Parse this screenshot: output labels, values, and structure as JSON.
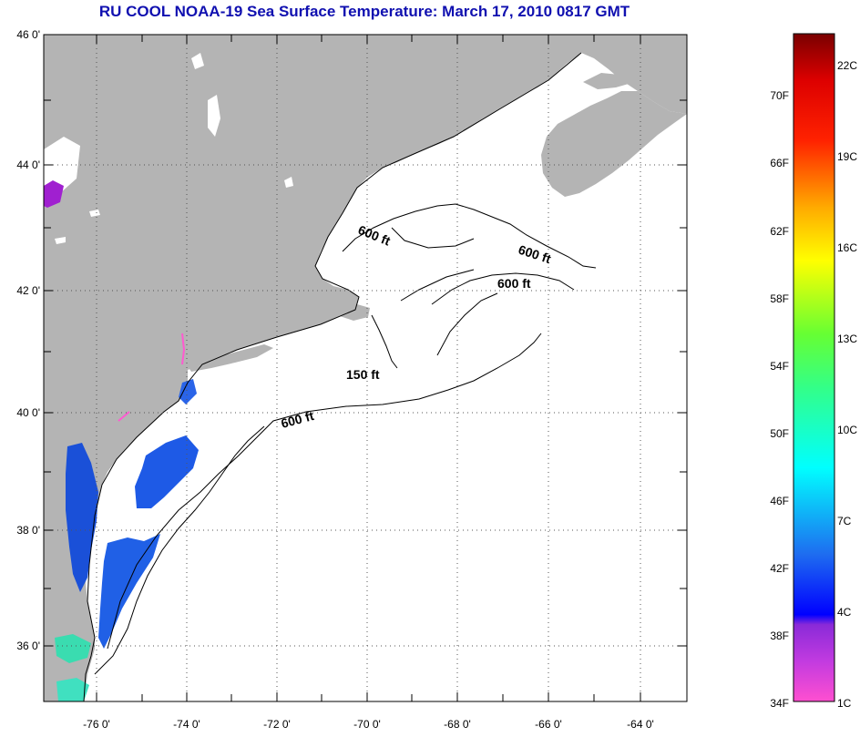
{
  "title": "RU COOL  NOAA-19  Sea Surface Temperature:  March 17, 2010 0817 GMT",
  "lat_labels": [
    "46 0'",
    "44 0'",
    "42 0'",
    "40 0'",
    "38 0'",
    "36 0'"
  ],
  "lon_labels": [
    "-76 0'",
    "-74 0'",
    "-72 0'",
    "-70 0'",
    "-68 0'",
    "-66 0'",
    "-64 0'"
  ],
  "contours": [
    "600 ft",
    "600 ft",
    "600 ft",
    "150 ft",
    "600 ft"
  ],
  "colorbar": {
    "fahrenheit": [
      "70F",
      "66F",
      "62F",
      "58F",
      "54F",
      "50F",
      "46F",
      "42F",
      "38F",
      "34F"
    ],
    "celsius": [
      "22C",
      "19C",
      "16C",
      "13C",
      "10C",
      "7C",
      "4C",
      "1C"
    ]
  },
  "colors": {
    "land": "#b4b4b4",
    "title": "#1010b0",
    "cold": "#1e5ae6"
  }
}
